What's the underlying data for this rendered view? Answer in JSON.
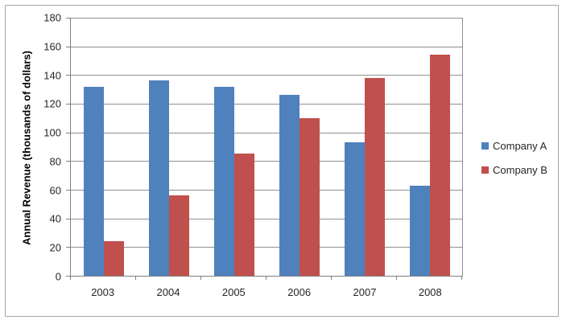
{
  "chart_data": {
    "type": "bar",
    "title": "",
    "xlabel": "",
    "ylabel": "Annual Revenue (thousands of dollars)",
    "categories": [
      "2003",
      "2004",
      "2005",
      "2006",
      "2007",
      "2008"
    ],
    "series": [
      {
        "name": "Company A",
        "color": "#4F81BD",
        "values": [
          132,
          136,
          132,
          126,
          93,
          63
        ]
      },
      {
        "name": "Company B",
        "color": "#C0504D",
        "values": [
          24,
          56,
          85,
          110,
          138,
          154
        ]
      }
    ],
    "ylim": [
      0,
      180
    ],
    "yticks": [
      0,
      20,
      40,
      60,
      80,
      100,
      120,
      140,
      160,
      180
    ],
    "grid": true,
    "legend_position": "right",
    "colors": {
      "gridline": "#909090",
      "axis": "#7f7f7f",
      "frame_border": "#a6a6a6",
      "text": "#262626",
      "background": "#ffffff"
    }
  }
}
